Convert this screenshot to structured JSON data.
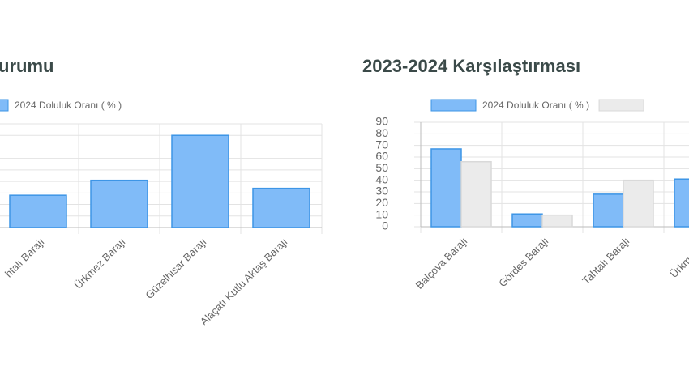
{
  "chart_data": [
    {
      "type": "bar",
      "title": "urumu",
      "categories": [
        "htalı Barajı",
        "Ürkmez Barajı",
        "Güzelhisar Barajı",
        "Alaçatı Kutlu Aktaş Barajı"
      ],
      "series": [
        {
          "name": "2024 Doluluk Oranı ( % )",
          "color": "#80bbf8",
          "values": [
            28,
            41,
            80,
            34
          ]
        }
      ],
      "ylim": [
        0,
        90
      ],
      "yticks": [
        0,
        10,
        20,
        30,
        40,
        50,
        60,
        70,
        80,
        90
      ],
      "grid": true
    },
    {
      "type": "bar",
      "title": "2023-2024 Karşılaştırması",
      "categories": [
        "Balçova Barajı",
        "Gördes Barajı",
        "Tahtalı Barajı",
        "Ürkmez Ba"
      ],
      "series": [
        {
          "name": "2024 Doluluk Oranı ( % )",
          "color": "#80bbf8",
          "values": [
            67,
            11,
            28,
            41
          ]
        },
        {
          "color": "#ebebeb",
          "values": [
            56,
            10,
            40,
            null
          ]
        }
      ],
      "ylim": [
        0,
        90
      ],
      "yticks": [
        0,
        10,
        20,
        30,
        40,
        50,
        60,
        70,
        80,
        90
      ],
      "grid": true
    }
  ]
}
